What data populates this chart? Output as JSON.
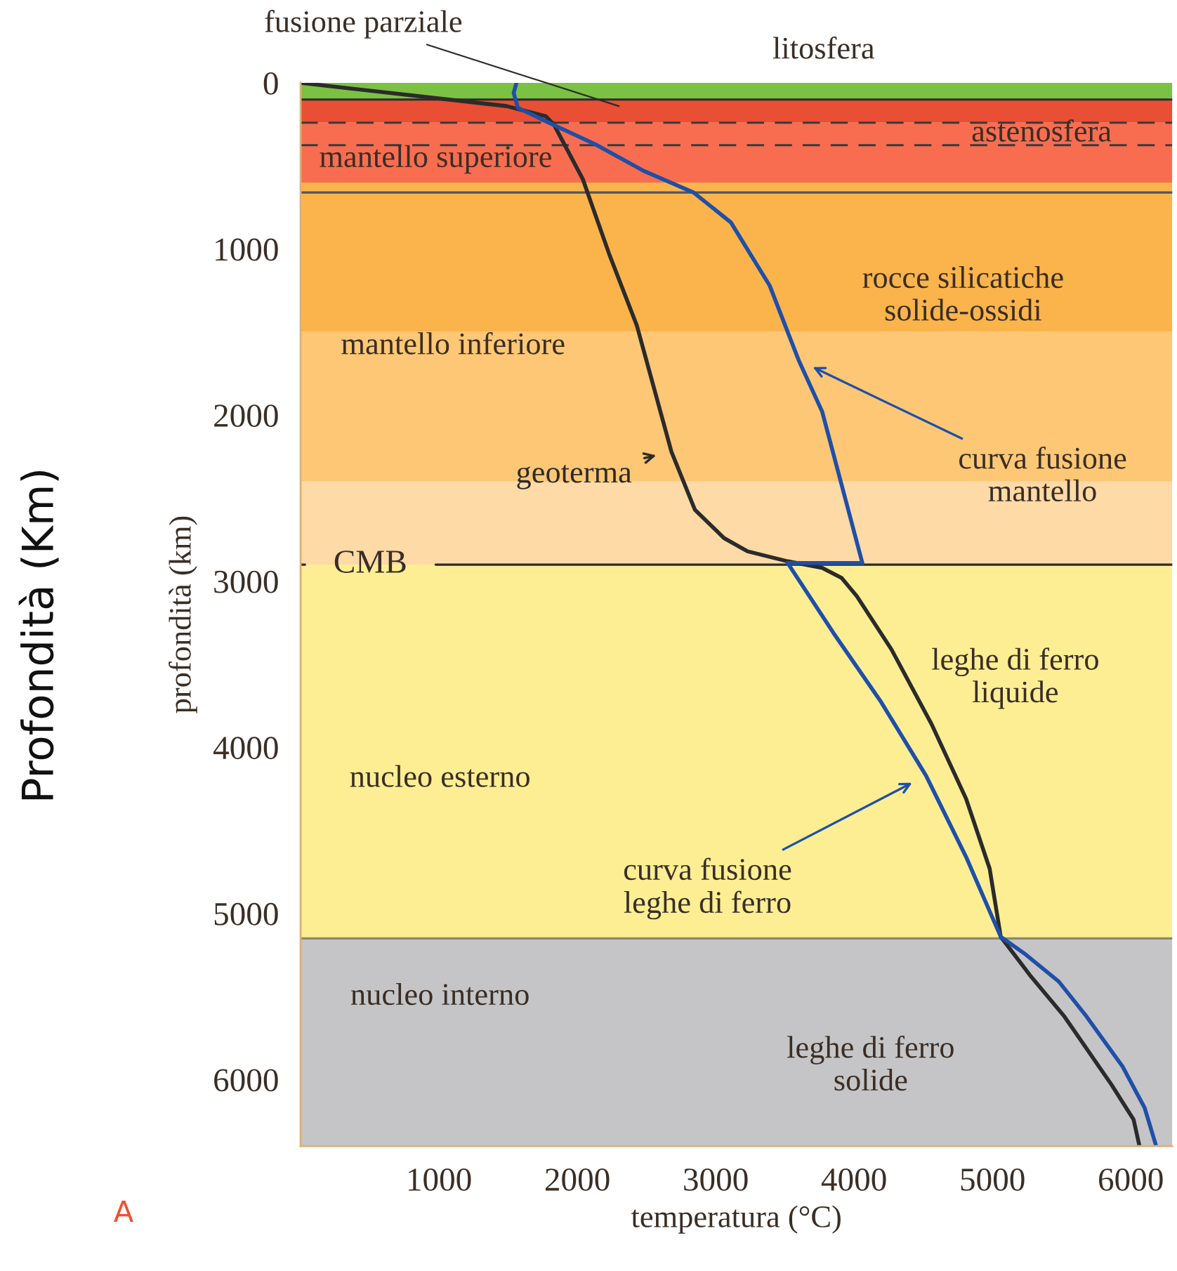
{
  "chart_data": {
    "type": "line",
    "xlabel": "temperatura (°C)",
    "ylabel": "profondità (km)",
    "xlim": [
      0,
      6300
    ],
    "ylim": [
      6400,
      0
    ],
    "xticks": [
      1000,
      2000,
      3000,
      4000,
      5000,
      6000
    ],
    "yticks": [
      0,
      1000,
      2000,
      3000,
      4000,
      5000,
      6000
    ],
    "grid": false,
    "marker": "none",
    "line_style": "solid",
    "series": [
      {
        "name": "geoterma",
        "color": "#2b2b2b",
        "x": [
          0,
          1490,
          1770,
          1830,
          2040,
          2120,
          2230,
          2430,
          2680,
          2850,
          3060,
          3230,
          3520,
          3770,
          3910,
          4020,
          4270,
          4560,
          4810,
          4980,
          5060,
          5270,
          5520,
          5860,
          6020,
          6060
        ],
        "values": [
          0,
          140,
          200,
          250,
          580,
          770,
          1030,
          1460,
          2220,
          2570,
          2740,
          2820,
          2880,
          2920,
          2980,
          3090,
          3410,
          3860,
          4310,
          4730,
          5140,
          5370,
          5620,
          6030,
          6240,
          6390
        ]
      },
      {
        "name": "curva fusione\nmantello",
        "color": "#1f4fa8",
        "x": [
          1560,
          1540,
          1570,
          1770,
          2130,
          2480,
          2840,
          3110,
          3250,
          3390,
          3600,
          3770,
          4060,
          3520
        ],
        "values": [
          0,
          60,
          150,
          230,
          370,
          530,
          660,
          840,
          1030,
          1220,
          1670,
          1980,
          2890,
          2890
        ]
      },
      {
        "name": "curva fusione\nleghe di ferro",
        "color": "#1f4fa8",
        "x": [
          3520,
          3850,
          4190,
          4520,
          4810,
          5060,
          5230,
          5480,
          5680,
          5940,
          6100,
          6180
        ],
        "values": [
          2890,
          3310,
          3720,
          4170,
          4660,
          5140,
          5240,
          5410,
          5620,
          5920,
          6170,
          6390
        ]
      }
    ],
    "bands": [
      {
        "axis": "y",
        "from": 0,
        "to": 100,
        "color": "#7bc143"
      },
      {
        "axis": "y",
        "from": 100,
        "to": 240,
        "color": "#e84f35"
      },
      {
        "axis": "y",
        "from": 240,
        "to": 600,
        "color": "#f86d50"
      },
      {
        "axis": "y",
        "from": 600,
        "to": 1500,
        "color": "#fbb44b"
      },
      {
        "axis": "y",
        "from": 1500,
        "to": 2400,
        "color": "#fdc775"
      },
      {
        "axis": "y",
        "from": 2400,
        "to": 2900,
        "color": "#fddaa6"
      },
      {
        "axis": "y",
        "from": 2900,
        "to": 5150,
        "color": "#fdee94"
      },
      {
        "axis": "y",
        "from": 5150,
        "to": 6400,
        "color": "#c5c5c7"
      }
    ],
    "ref_lines": [
      {
        "axis": "y",
        "value": 100,
        "color": "#2b2b2b",
        "line_style": "solid"
      },
      {
        "axis": "y",
        "value": 240,
        "color": "#3a3a3a",
        "line_style": "dashed"
      },
      {
        "axis": "y",
        "value": 375,
        "color": "#3a3a3a",
        "line_style": "dashed"
      },
      {
        "axis": "y",
        "value": 660,
        "color": "#555555",
        "line_style": "solid"
      },
      {
        "axis": "y",
        "value": 2900,
        "color": "#2b2b2b",
        "line_style": "solid",
        "label": "CMB"
      },
      {
        "axis": "y",
        "value": 5150,
        "color": "#8a8a70",
        "line_style": "solid"
      }
    ],
    "annotations": [
      {
        "text": "fusione parziale",
        "x": 2300,
        "y": 140
      },
      "litosfera",
      "astenosfera",
      "mantello superiore",
      "rocce silicatiche\nsolide-ossidi",
      "mantello inferiore",
      "leghe di ferro\nliquide",
      "nucleo esterno",
      "nucleo interno",
      "leghe di ferro\nsolide",
      "Profondità (Km)",
      "A"
    ]
  }
}
